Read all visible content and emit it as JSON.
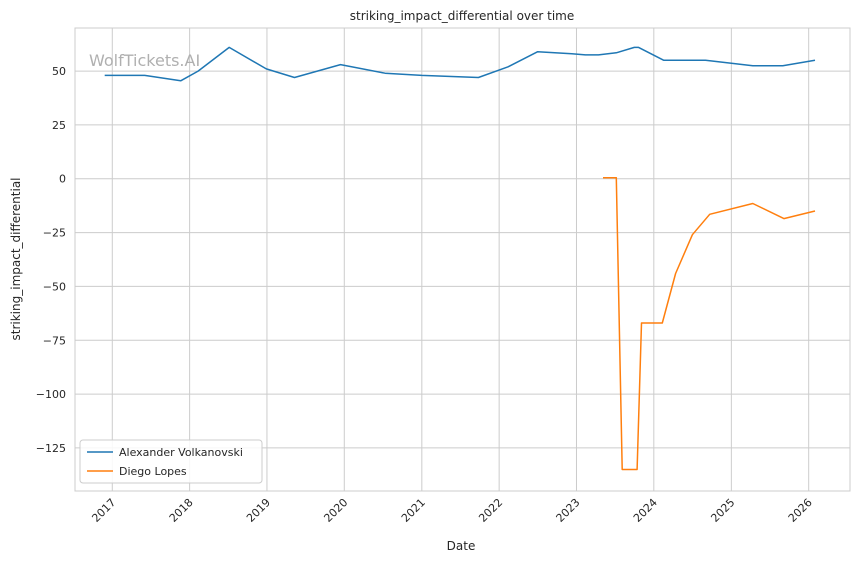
{
  "chart_data": {
    "type": "line",
    "title": "striking_impact_differential over time",
    "xlabel": "Date",
    "ylabel": "striking_impact_differential",
    "watermark": "WolfTickets.AI",
    "x_ticks": [
      "2017",
      "2018",
      "2019",
      "2020",
      "2021",
      "2022",
      "2023",
      "2024",
      "2025",
      "2026"
    ],
    "y_ticks": [
      50,
      25,
      0,
      -25,
      -50,
      -75,
      -100,
      -125
    ],
    "xlim": [
      "2016-07-09",
      "2026-07-15"
    ],
    "ylim": [
      -145,
      70
    ],
    "grid": true,
    "legend_position": "lower-left",
    "series": [
      {
        "name": "Alexander Volkanovski",
        "color": "#1f77b4",
        "points": [
          [
            "2016-11-26",
            48
          ],
          [
            "2017-06-03",
            48
          ],
          [
            "2017-11-20",
            45.5
          ],
          [
            "2018-02-10",
            50
          ],
          [
            "2018-07-07",
            61
          ],
          [
            "2018-12-29",
            51
          ],
          [
            "2019-05-11",
            47
          ],
          [
            "2019-12-14",
            53
          ],
          [
            "2020-07-11",
            49
          ],
          [
            "2021-01-01",
            48
          ],
          [
            "2021-09-25",
            47
          ],
          [
            "2022-02-12",
            52
          ],
          [
            "2022-07-02",
            59
          ],
          [
            "2022-12-10",
            58
          ],
          [
            "2023-02-12",
            57.5
          ],
          [
            "2023-04-15",
            57.5
          ],
          [
            "2023-07-08",
            58.5
          ],
          [
            "2023-10-01",
            61
          ],
          [
            "2023-10-21",
            61
          ],
          [
            "2024-02-17",
            55
          ],
          [
            "2024-09-01",
            55
          ],
          [
            "2025-04-12",
            52.5
          ],
          [
            "2025-09-01",
            52.5
          ],
          [
            "2026-01-31",
            55
          ]
        ]
      },
      {
        "name": "Diego Lopes",
        "color": "#ff7f0e",
        "points": [
          [
            "2023-05-06",
            0.5
          ],
          [
            "2023-07-08",
            0.5
          ],
          [
            "2023-08-05",
            -135
          ],
          [
            "2023-10-14",
            -135
          ],
          [
            "2023-11-04",
            -67
          ],
          [
            "2024-02-10",
            -67
          ],
          [
            "2024-04-13",
            -44
          ],
          [
            "2024-07-01",
            -26
          ],
          [
            "2024-09-21",
            -16.5
          ],
          [
            "2025-04-12",
            -11.5
          ],
          [
            "2025-09-06",
            -18.5
          ],
          [
            "2026-01-31",
            -15
          ]
        ]
      }
    ]
  }
}
